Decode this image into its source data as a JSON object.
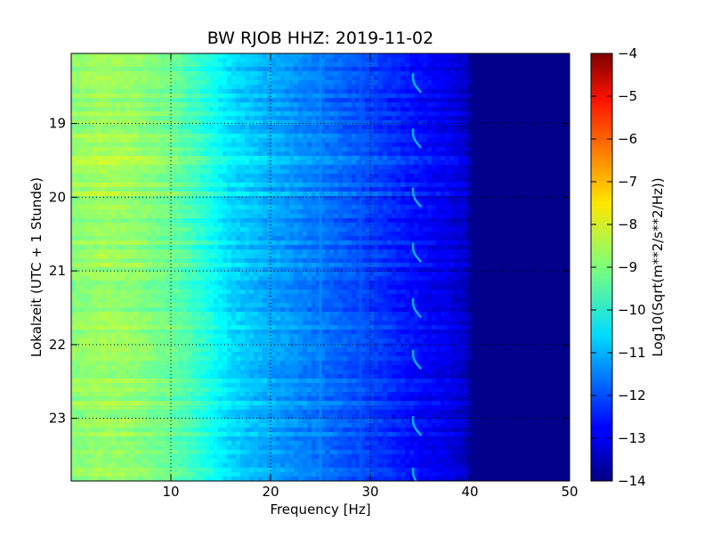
{
  "chart_data": {
    "type": "heatmap",
    "title": "BW RJOB HHZ: 2019-11-02",
    "xlabel": "Frequency [Hz]",
    "ylabel": "Lokalzeit (UTC + 1 Stunde)",
    "xlim": [
      0,
      50
    ],
    "ylim": [
      18.05,
      23.85
    ],
    "x_ticks": [
      10,
      20,
      30,
      40,
      50
    ],
    "x_tick_labels": [
      "10",
      "20",
      "30",
      "40",
      "50"
    ],
    "y_ticks": [
      19,
      20,
      21,
      22,
      23
    ],
    "y_tick_labels": [
      "19",
      "20",
      "21",
      "22",
      "23"
    ],
    "grid": true,
    "y_inverted": true,
    "colormap": "jet",
    "colorbar": {
      "label": "Log10(Sqrt(m**2/s**2/Hz))",
      "vmin": -14,
      "vmax": -4,
      "ticks": [
        -14,
        -13,
        -12,
        -11,
        -10,
        -9,
        -8,
        -7,
        -6,
        -5,
        -4
      ],
      "tick_labels": [
        "−14",
        "−13",
        "−12",
        "−11",
        "−10",
        "−9",
        "−8",
        "−7",
        "−6",
        "−5",
        "−4"
      ]
    },
    "spectrum_profile": {
      "freqs": [
        0,
        3,
        6,
        10,
        13,
        16,
        20,
        25,
        30,
        34,
        38,
        39.5,
        40.5,
        50
      ],
      "values": [
        -8.9,
        -8.7,
        -8.8,
        -9.2,
        -9.8,
        -10.6,
        -11.1,
        -11.6,
        -12.1,
        -12.6,
        -13.0,
        -13.3,
        -13.9,
        -13.9
      ]
    },
    "line_features": [
      {
        "freq": 25.0,
        "offset": 0.25
      },
      {
        "freq": 29.0,
        "offset": 0.15
      }
    ],
    "curve_feature": {
      "freq_center": 34.7,
      "value": -11.0,
      "times": [
        18.45,
        19.2,
        20.0,
        20.75,
        21.5,
        22.2,
        23.1,
        23.8
      ]
    }
  }
}
